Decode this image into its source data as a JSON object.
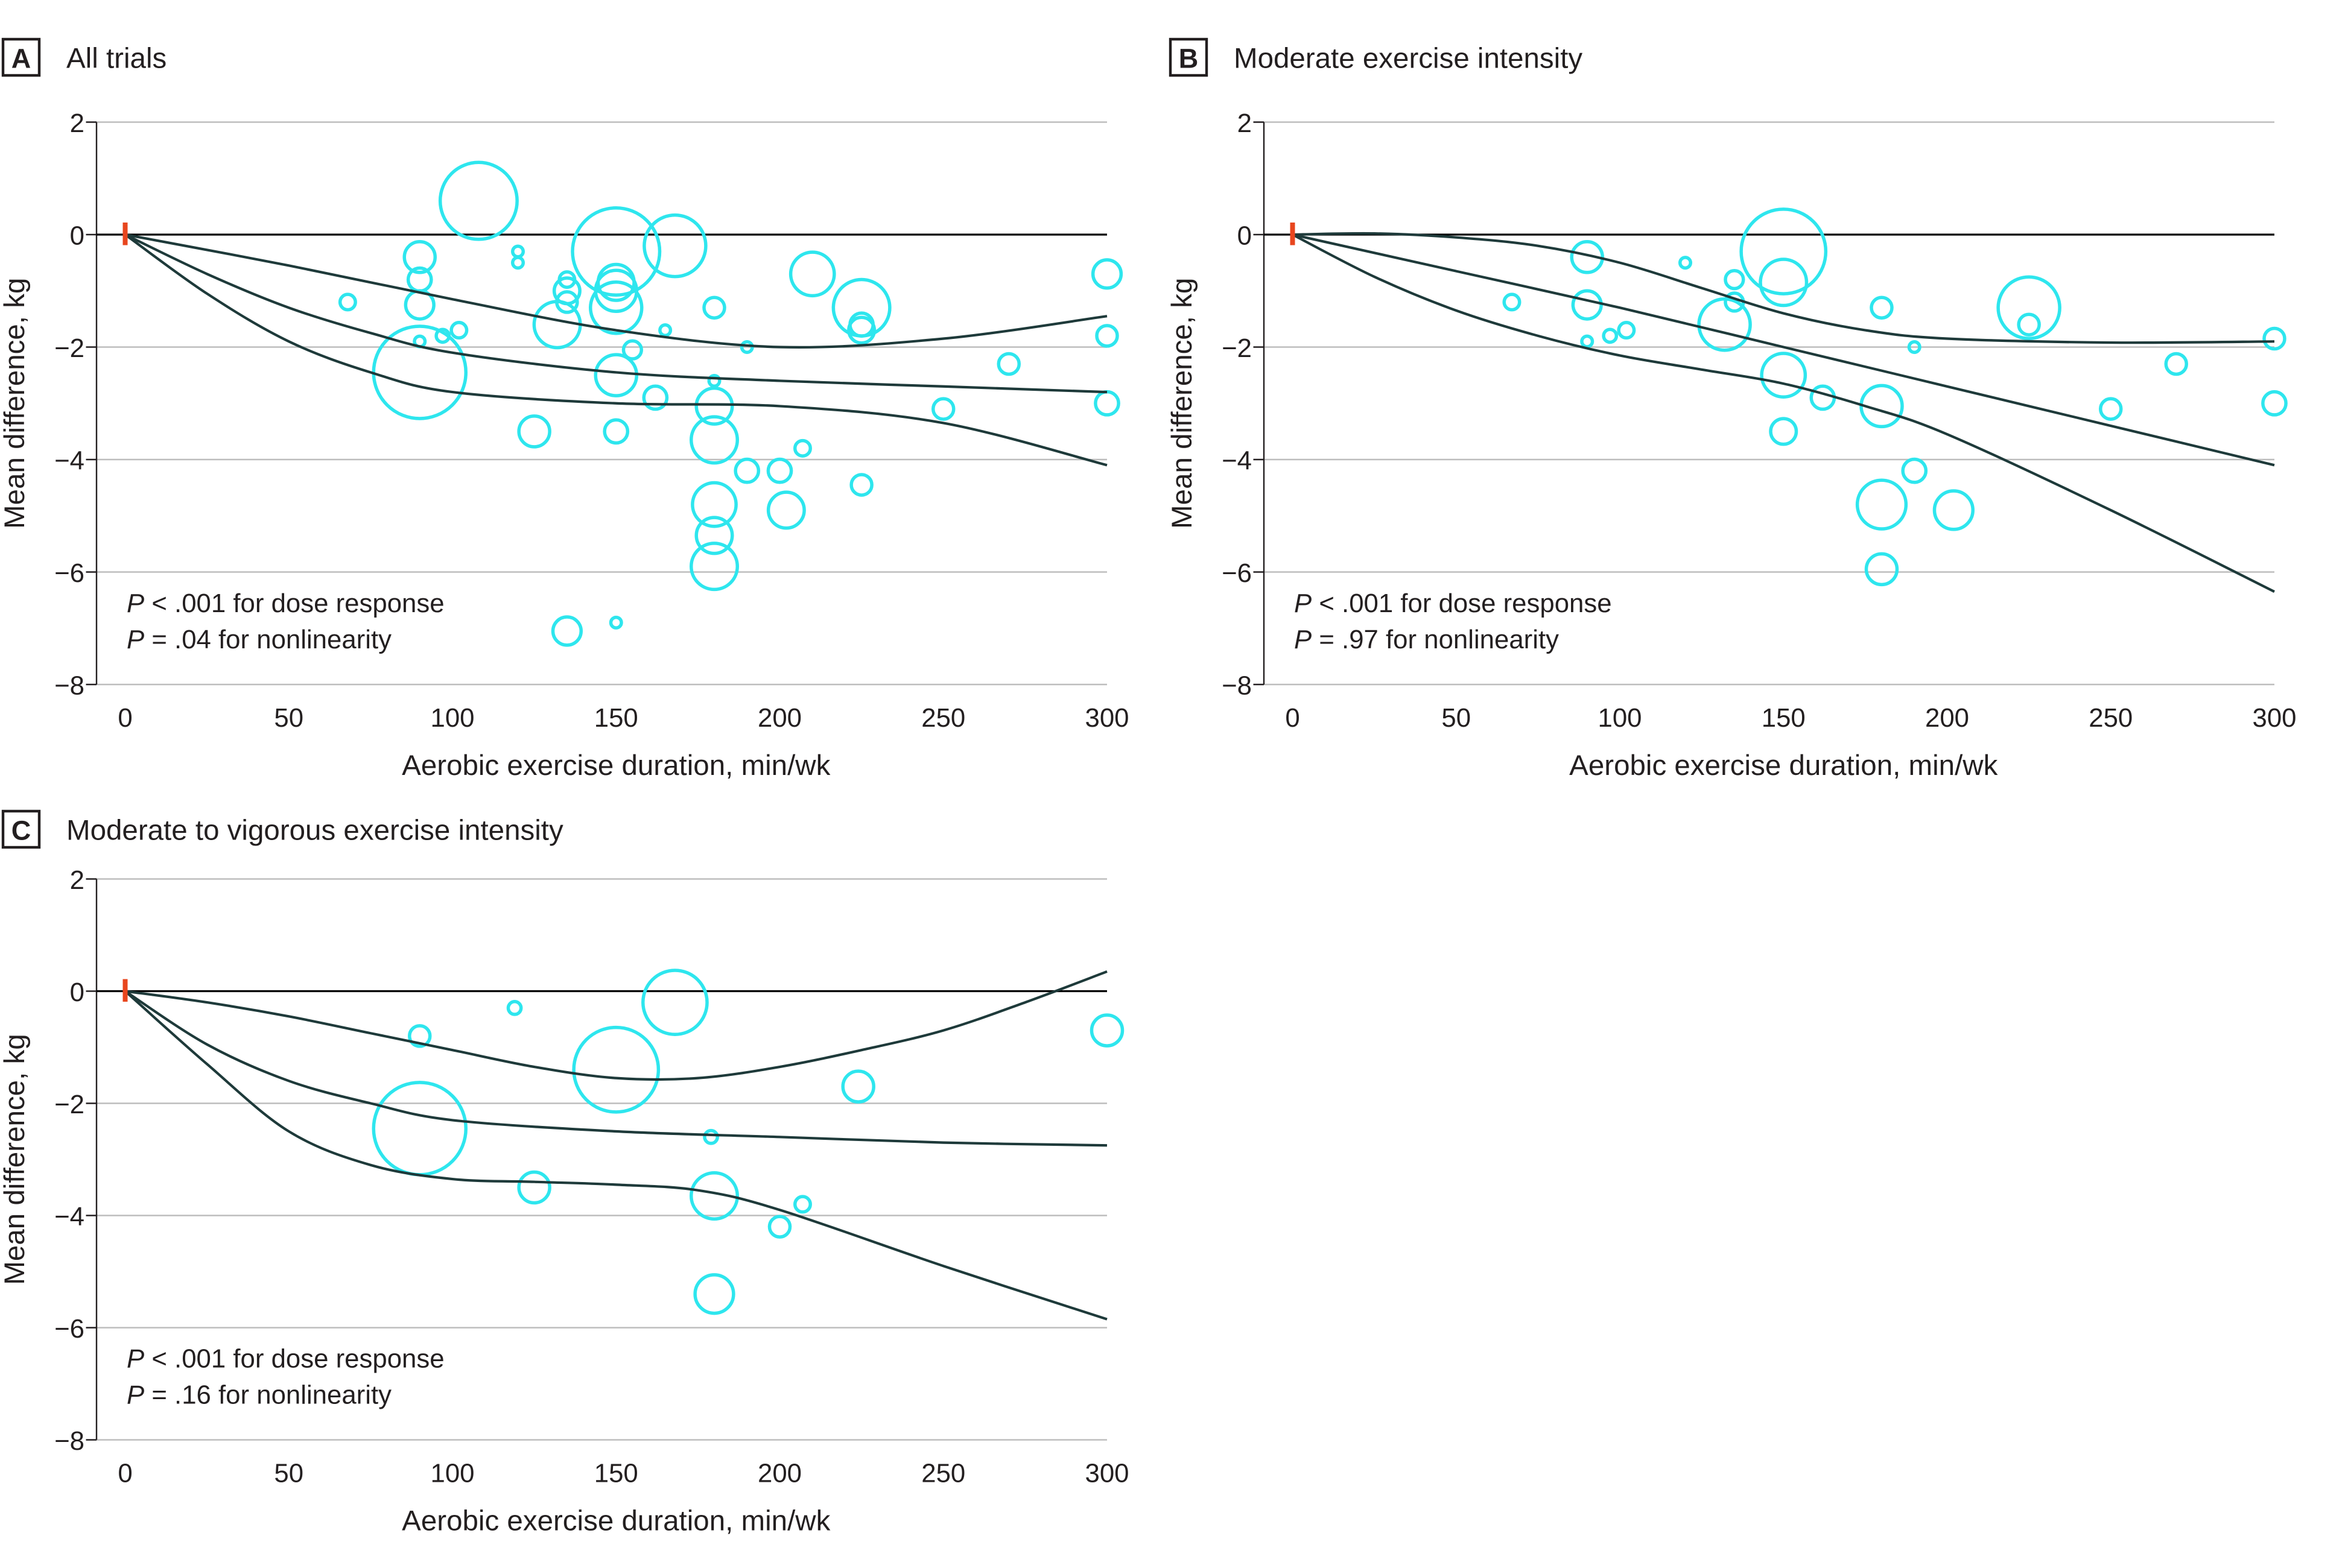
{
  "figure": {
    "colors": {
      "bubble": "#2EE6EE",
      "curve": "#1E3A3A",
      "zero_line": "#000000",
      "grid": "#BDBDBD",
      "origin_mark": "#E8461E",
      "text": "#231F20"
    }
  },
  "chart_data": [
    {
      "type": "scatter",
      "panel": "A",
      "title": "All trials",
      "xlabel": "Aerobic exercise duration, min/wk",
      "ylabel": "Mean difference, kg",
      "xlim": [
        0,
        300
      ],
      "ylim": [
        -8,
        2
      ],
      "xticks": [
        0,
        50,
        100,
        150,
        200,
        250,
        300
      ],
      "yticks": [
        2,
        0,
        -2,
        -4,
        -6,
        -8
      ],
      "grid": true,
      "annotations": [
        {
          "italic": "P",
          "text": " < .001 for dose response"
        },
        {
          "italic": "P",
          "text": " = .04 for nonlinearity"
        }
      ],
      "points": [
        {
          "x": 68,
          "y": -1.2,
          "size": 0.6
        },
        {
          "x": 90,
          "y": -0.4,
          "size": 1.2
        },
        {
          "x": 90,
          "y": -0.8,
          "size": 0.9
        },
        {
          "x": 90,
          "y": -1.25,
          "size": 1.1
        },
        {
          "x": 90,
          "y": -1.9,
          "size": 0.4
        },
        {
          "x": 90,
          "y": -2.45,
          "size": 3.6
        },
        {
          "x": 97,
          "y": -1.8,
          "size": 0.5
        },
        {
          "x": 102,
          "y": -1.7,
          "size": 0.6
        },
        {
          "x": 108,
          "y": 0.6,
          "size": 3.0
        },
        {
          "x": 120,
          "y": -0.3,
          "size": 0.4
        },
        {
          "x": 120,
          "y": -0.5,
          "size": 0.4
        },
        {
          "x": 125,
          "y": -3.5,
          "size": 1.2
        },
        {
          "x": 132,
          "y": -1.6,
          "size": 1.8
        },
        {
          "x": 135,
          "y": -0.8,
          "size": 0.6
        },
        {
          "x": 135,
          "y": -1.0,
          "size": 1.0
        },
        {
          "x": 135,
          "y": -1.2,
          "size": 0.8
        },
        {
          "x": 135,
          "y": -7.05,
          "size": 1.1
        },
        {
          "x": 150,
          "y": -0.3,
          "size": 3.4
        },
        {
          "x": 150,
          "y": -0.85,
          "size": 1.4
        },
        {
          "x": 150,
          "y": -1.0,
          "size": 1.6
        },
        {
          "x": 150,
          "y": -1.3,
          "size": 2.0
        },
        {
          "x": 150,
          "y": -2.5,
          "size": 1.6
        },
        {
          "x": 150,
          "y": -3.5,
          "size": 0.9
        },
        {
          "x": 150,
          "y": -6.9,
          "size": 0.3
        },
        {
          "x": 155,
          "y": -2.05,
          "size": 0.7
        },
        {
          "x": 162,
          "y": -2.9,
          "size": 0.9
        },
        {
          "x": 165,
          "y": -1.7,
          "size": 0.3
        },
        {
          "x": 168,
          "y": -0.2,
          "size": 2.4
        },
        {
          "x": 180,
          "y": -1.3,
          "size": 0.8
        },
        {
          "x": 180,
          "y": -2.6,
          "size": 0.4
        },
        {
          "x": 180,
          "y": -3.05,
          "size": 1.4
        },
        {
          "x": 180,
          "y": -3.65,
          "size": 1.8
        },
        {
          "x": 180,
          "y": -4.8,
          "size": 1.7
        },
        {
          "x": 180,
          "y": -5.35,
          "size": 1.4
        },
        {
          "x": 180,
          "y": -5.9,
          "size": 1.8
        },
        {
          "x": 190,
          "y": -2.0,
          "size": 0.3
        },
        {
          "x": 190,
          "y": -4.2,
          "size": 0.9
        },
        {
          "x": 200,
          "y": -4.2,
          "size": 0.9
        },
        {
          "x": 202,
          "y": -4.9,
          "size": 1.4
        },
        {
          "x": 207,
          "y": -3.8,
          "size": 0.6
        },
        {
          "x": 210,
          "y": -0.7,
          "size": 1.7
        },
        {
          "x": 225,
          "y": -1.3,
          "size": 2.2
        },
        {
          "x": 225,
          "y": -1.6,
          "size": 0.9
        },
        {
          "x": 225,
          "y": -1.7,
          "size": 1.0
        },
        {
          "x": 225,
          "y": -4.45,
          "size": 0.8
        },
        {
          "x": 250,
          "y": -3.1,
          "size": 0.8
        },
        {
          "x": 270,
          "y": -2.3,
          "size": 0.8
        },
        {
          "x": 300,
          "y": -0.7,
          "size": 1.1
        },
        {
          "x": 300,
          "y": -1.8,
          "size": 0.8
        },
        {
          "x": 300,
          "y": -3.0,
          "size": 0.9
        }
      ],
      "curves": {
        "upper": [
          [
            0,
            0
          ],
          [
            50,
            -0.55
          ],
          [
            100,
            -1.15
          ],
          [
            150,
            -1.7
          ],
          [
            200,
            -2.0
          ],
          [
            250,
            -1.85
          ],
          [
            300,
            -1.45
          ]
        ],
        "estimate": [
          [
            0,
            0
          ],
          [
            25,
            -0.7
          ],
          [
            50,
            -1.3
          ],
          [
            75,
            -1.75
          ],
          [
            100,
            -2.1
          ],
          [
            150,
            -2.45
          ],
          [
            200,
            -2.6
          ],
          [
            250,
            -2.7
          ],
          [
            300,
            -2.8
          ]
        ],
        "lower": [
          [
            0,
            0
          ],
          [
            25,
            -1.05
          ],
          [
            50,
            -1.9
          ],
          [
            75,
            -2.45
          ],
          [
            100,
            -2.8
          ],
          [
            150,
            -3.0
          ],
          [
            200,
            -3.05
          ],
          [
            250,
            -3.35
          ],
          [
            300,
            -4.1
          ]
        ]
      }
    },
    {
      "type": "scatter",
      "panel": "B",
      "title": "Moderate exercise intensity",
      "xlabel": "Aerobic exercise duration, min/wk",
      "ylabel": "Mean difference, kg",
      "xlim": [
        0,
        300
      ],
      "ylim": [
        -8,
        2
      ],
      "xticks": [
        0,
        50,
        100,
        150,
        200,
        250,
        300
      ],
      "yticks": [
        2,
        0,
        -2,
        -4,
        -6,
        -8
      ],
      "grid": true,
      "annotations": [
        {
          "italic": "P",
          "text": " < .001 for dose response"
        },
        {
          "italic": "P",
          "text": " = .97 for nonlinearity"
        }
      ],
      "points": [
        {
          "x": 67,
          "y": -1.2,
          "size": 0.6
        },
        {
          "x": 90,
          "y": -0.4,
          "size": 1.2
        },
        {
          "x": 90,
          "y": -1.25,
          "size": 1.1
        },
        {
          "x": 90,
          "y": -1.9,
          "size": 0.4
        },
        {
          "x": 97,
          "y": -1.8,
          "size": 0.5
        },
        {
          "x": 102,
          "y": -1.7,
          "size": 0.6
        },
        {
          "x": 120,
          "y": -0.5,
          "size": 0.4
        },
        {
          "x": 132,
          "y": -1.6,
          "size": 2.0
        },
        {
          "x": 135,
          "y": -0.8,
          "size": 0.7
        },
        {
          "x": 135,
          "y": -1.2,
          "size": 0.7
        },
        {
          "x": 150,
          "y": -0.3,
          "size": 3.3
        },
        {
          "x": 150,
          "y": -0.85,
          "size": 1.8
        },
        {
          "x": 150,
          "y": -2.5,
          "size": 1.7
        },
        {
          "x": 150,
          "y": -3.5,
          "size": 1.0
        },
        {
          "x": 162,
          "y": -2.9,
          "size": 0.9
        },
        {
          "x": 180,
          "y": -1.3,
          "size": 0.8
        },
        {
          "x": 180,
          "y": -3.05,
          "size": 1.6
        },
        {
          "x": 180,
          "y": -4.8,
          "size": 1.9
        },
        {
          "x": 180,
          "y": -5.95,
          "size": 1.2
        },
        {
          "x": 190,
          "y": -2.0,
          "size": 0.3
        },
        {
          "x": 190,
          "y": -4.2,
          "size": 0.9
        },
        {
          "x": 202,
          "y": -4.9,
          "size": 1.5
        },
        {
          "x": 225,
          "y": -1.3,
          "size": 2.4
        },
        {
          "x": 225,
          "y": -1.6,
          "size": 0.8
        },
        {
          "x": 250,
          "y": -3.1,
          "size": 0.8
        },
        {
          "x": 270,
          "y": -2.3,
          "size": 0.8
        },
        {
          "x": 300,
          "y": -1.85,
          "size": 0.8
        },
        {
          "x": 300,
          "y": -3.0,
          "size": 0.9
        }
      ],
      "curves": {
        "upper": [
          [
            0,
            0
          ],
          [
            25,
            0.02
          ],
          [
            50,
            -0.05
          ],
          [
            75,
            -0.2
          ],
          [
            100,
            -0.5
          ],
          [
            125,
            -0.95
          ],
          [
            150,
            -1.4
          ],
          [
            175,
            -1.7
          ],
          [
            200,
            -1.85
          ],
          [
            250,
            -1.92
          ],
          [
            300,
            -1.9
          ]
        ],
        "estimate": [
          [
            0,
            0
          ],
          [
            50,
            -0.65
          ],
          [
            100,
            -1.3
          ],
          [
            150,
            -2.0
          ],
          [
            200,
            -2.7
          ],
          [
            250,
            -3.4
          ],
          [
            300,
            -4.1
          ]
        ],
        "lower": [
          [
            0,
            0
          ],
          [
            25,
            -0.75
          ],
          [
            50,
            -1.35
          ],
          [
            75,
            -1.8
          ],
          [
            100,
            -2.15
          ],
          [
            125,
            -2.4
          ],
          [
            150,
            -2.65
          ],
          [
            175,
            -3.05
          ],
          [
            200,
            -3.55
          ],
          [
            250,
            -4.9
          ],
          [
            300,
            -6.35
          ]
        ]
      }
    },
    {
      "type": "scatter",
      "panel": "C",
      "title": "Moderate to vigorous exercise intensity",
      "xlabel": "Aerobic exercise duration, min/wk",
      "ylabel": "Mean difference, kg",
      "xlim": [
        0,
        300
      ],
      "ylim": [
        -8,
        2
      ],
      "xticks": [
        0,
        50,
        100,
        150,
        200,
        250,
        300
      ],
      "yticks": [
        2,
        0,
        -2,
        -4,
        -6,
        -8
      ],
      "grid": true,
      "annotations": [
        {
          "italic": "P",
          "text": " < .001 for dose response"
        },
        {
          "italic": "P",
          "text": " = .16 for nonlinearity"
        }
      ],
      "points": [
        {
          "x": 90,
          "y": -0.8,
          "size": 0.8
        },
        {
          "x": 90,
          "y": -2.45,
          "size": 3.6
        },
        {
          "x": 119,
          "y": -0.3,
          "size": 0.5
        },
        {
          "x": 125,
          "y": -3.5,
          "size": 1.2
        },
        {
          "x": 150,
          "y": -1.4,
          "size": 3.3
        },
        {
          "x": 168,
          "y": -0.2,
          "size": 2.5
        },
        {
          "x": 179,
          "y": -2.6,
          "size": 0.5
        },
        {
          "x": 180,
          "y": -3.65,
          "size": 1.8
        },
        {
          "x": 180,
          "y": -5.4,
          "size": 1.5
        },
        {
          "x": 200,
          "y": -4.2,
          "size": 0.8
        },
        {
          "x": 207,
          "y": -3.8,
          "size": 0.6
        },
        {
          "x": 224,
          "y": -1.7,
          "size": 1.2
        },
        {
          "x": 300,
          "y": -0.7,
          "size": 1.2
        }
      ],
      "curves": {
        "upper": [
          [
            0,
            0
          ],
          [
            25,
            -0.2
          ],
          [
            50,
            -0.45
          ],
          [
            75,
            -0.75
          ],
          [
            100,
            -1.05
          ],
          [
            125,
            -1.35
          ],
          [
            150,
            -1.55
          ],
          [
            175,
            -1.55
          ],
          [
            200,
            -1.35
          ],
          [
            225,
            -1.05
          ],
          [
            250,
            -0.7
          ],
          [
            275,
            -0.2
          ],
          [
            300,
            0.35
          ]
        ],
        "estimate": [
          [
            0,
            0
          ],
          [
            25,
            -0.95
          ],
          [
            50,
            -1.6
          ],
          [
            75,
            -2.0
          ],
          [
            100,
            -2.3
          ],
          [
            150,
            -2.5
          ],
          [
            200,
            -2.6
          ],
          [
            250,
            -2.7
          ],
          [
            300,
            -2.75
          ]
        ],
        "lower": [
          [
            0,
            0
          ],
          [
            25,
            -1.3
          ],
          [
            50,
            -2.5
          ],
          [
            75,
            -3.1
          ],
          [
            100,
            -3.35
          ],
          [
            125,
            -3.4
          ],
          [
            150,
            -3.45
          ],
          [
            175,
            -3.55
          ],
          [
            200,
            -3.9
          ],
          [
            250,
            -4.9
          ],
          [
            300,
            -5.85
          ]
        ]
      }
    }
  ]
}
